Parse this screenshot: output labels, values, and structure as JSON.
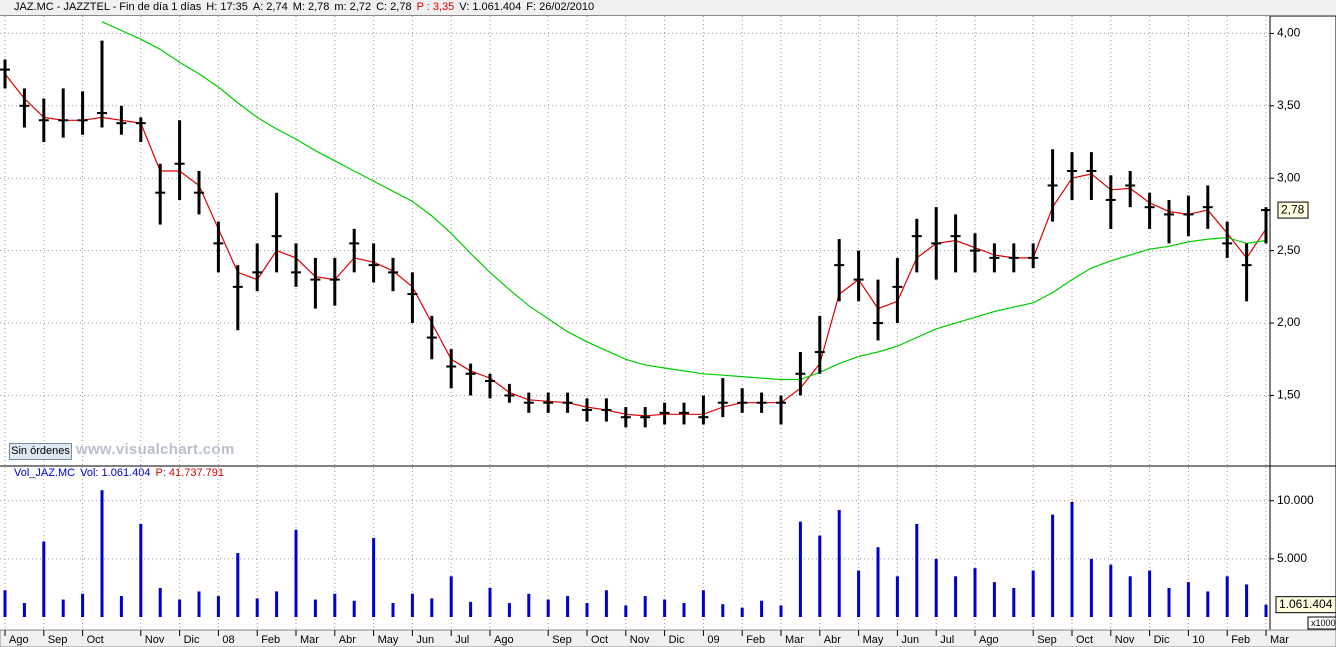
{
  "chart_data": [
    {
      "type": "hlc",
      "info": [
        {
          "text": "JAZ.MC - JAZZTEL - Fin de día 1 días",
          "color": "#000000"
        },
        {
          "text": "H: 17:35",
          "color": "#000000"
        },
        {
          "text": "A: 2,74",
          "color": "#000000"
        },
        {
          "text": "M: 2,78",
          "color": "#000000"
        },
        {
          "text": "m: 2,72",
          "color": "#000000"
        },
        {
          "text": "C: 2,78",
          "color": "#000000"
        },
        {
          "text": "P : 3,35",
          "color": "#e00000"
        },
        {
          "text": "V: 1.061.404",
          "color": "#000000"
        },
        {
          "text": "F: 26/02/2010",
          "color": "#000000"
        }
      ],
      "categories": [
        "Ago",
        null,
        "Sep",
        null,
        "Oct",
        null,
        null,
        "Nov",
        null,
        "Dic",
        null,
        "08",
        null,
        "Feb",
        null,
        "Mar",
        null,
        "Abr",
        null,
        "May",
        null,
        "Jun",
        null,
        "Jul",
        null,
        "Ago",
        null,
        null,
        "Sep",
        null,
        "Oct",
        null,
        "Nov",
        null,
        "Dic",
        null,
        "09",
        null,
        "Feb",
        null,
        "Mar",
        null,
        "Abr",
        null,
        "May",
        null,
        "Jun",
        null,
        "Jul",
        null,
        "Ago",
        null,
        null,
        "Sep",
        null,
        "Oct",
        null,
        "Nov",
        null,
        "Dic",
        null,
        "10",
        null,
        "Feb",
        null,
        "Mar"
      ],
      "high": [
        3.82,
        3.62,
        3.55,
        3.62,
        3.6,
        3.95,
        3.5,
        3.42,
        3.1,
        3.4,
        3.05,
        2.7,
        2.4,
        2.55,
        2.9,
        2.55,
        2.45,
        2.45,
        2.65,
        2.55,
        2.45,
        2.35,
        2.05,
        1.82,
        1.72,
        1.65,
        1.58,
        1.52,
        1.52,
        1.52,
        1.48,
        1.48,
        1.42,
        1.42,
        1.45,
        1.45,
        1.5,
        1.62,
        1.55,
        1.52,
        1.5,
        1.8,
        2.05,
        2.58,
        2.5,
        2.3,
        2.45,
        2.72,
        2.8,
        2.75,
        2.62,
        2.55,
        2.55,
        2.55,
        3.2,
        3.18,
        3.18,
        3.02,
        3.05,
        2.9,
        2.85,
        2.88,
        2.95,
        2.7,
        2.55,
        2.8
      ],
      "low": [
        3.62,
        3.35,
        3.25,
        3.28,
        3.3,
        3.35,
        3.3,
        3.25,
        2.68,
        2.85,
        2.75,
        2.35,
        1.95,
        2.22,
        2.35,
        2.25,
        2.1,
        2.12,
        2.35,
        2.28,
        2.22,
        2.0,
        1.75,
        1.55,
        1.5,
        1.48,
        1.45,
        1.38,
        1.38,
        1.38,
        1.32,
        1.32,
        1.28,
        1.28,
        1.3,
        1.3,
        1.3,
        1.35,
        1.38,
        1.38,
        1.3,
        1.5,
        1.65,
        2.15,
        2.15,
        1.88,
        2.0,
        2.35,
        2.3,
        2.35,
        2.35,
        2.35,
        2.35,
        2.38,
        2.7,
        2.85,
        2.85,
        2.65,
        2.8,
        2.65,
        2.55,
        2.6,
        2.65,
        2.45,
        2.15,
        2.55
      ],
      "close": [
        3.75,
        3.5,
        3.4,
        3.4,
        3.4,
        3.45,
        3.38,
        3.38,
        2.9,
        3.1,
        2.9,
        2.55,
        2.25,
        2.35,
        2.6,
        2.35,
        2.3,
        2.3,
        2.55,
        2.4,
        2.35,
        2.2,
        1.9,
        1.7,
        1.65,
        1.6,
        1.5,
        1.45,
        1.45,
        1.45,
        1.4,
        1.4,
        1.35,
        1.35,
        1.38,
        1.38,
        1.35,
        1.45,
        1.45,
        1.45,
        1.45,
        1.65,
        1.8,
        2.4,
        2.3,
        2.0,
        2.25,
        2.6,
        2.55,
        2.6,
        2.5,
        2.45,
        2.45,
        2.45,
        2.95,
        3.05,
        3.05,
        2.85,
        2.95,
        2.8,
        2.75,
        2.75,
        2.8,
        2.55,
        2.4,
        2.78
      ],
      "color": "#000000",
      "lines": [
        {
          "color": "#e00000",
          "values": [
            3.72,
            3.55,
            3.42,
            3.4,
            3.4,
            3.42,
            3.4,
            3.38,
            3.05,
            3.05,
            2.95,
            2.65,
            2.35,
            2.3,
            2.5,
            2.45,
            2.32,
            2.3,
            2.45,
            2.42,
            2.36,
            2.25,
            2.0,
            1.75,
            1.67,
            1.62,
            1.52,
            1.47,
            1.46,
            1.45,
            1.42,
            1.4,
            1.37,
            1.36,
            1.37,
            1.37,
            1.37,
            1.42,
            1.45,
            1.45,
            1.45,
            1.55,
            1.72,
            2.2,
            2.3,
            2.1,
            2.15,
            2.45,
            2.55,
            2.57,
            2.52,
            2.47,
            2.45,
            2.45,
            2.8,
            3.0,
            3.03,
            2.92,
            2.93,
            2.83,
            2.77,
            2.75,
            2.78,
            2.62,
            2.45,
            2.65
          ]
        },
        {
          "color": "#00cc00",
          "values": [
            null,
            null,
            null,
            null,
            null,
            4.08,
            4.02,
            3.96,
            3.89,
            3.8,
            3.72,
            3.63,
            3.52,
            3.42,
            3.34,
            3.27,
            3.19,
            3.12,
            3.05,
            2.98,
            2.91,
            2.84,
            2.74,
            2.62,
            2.48,
            2.35,
            2.23,
            2.12,
            2.03,
            1.94,
            1.87,
            1.81,
            1.75,
            1.71,
            1.69,
            1.67,
            1.65,
            1.64,
            1.63,
            1.62,
            1.61,
            1.61,
            1.66,
            1.72,
            1.77,
            1.8,
            1.84,
            1.9,
            1.96,
            2.0,
            2.04,
            2.08,
            2.11,
            2.14,
            2.21,
            2.3,
            2.38,
            2.43,
            2.47,
            2.51,
            2.53,
            2.56,
            2.58,
            2.59,
            2.55,
            2.57
          ]
        }
      ],
      "ylim": [
        1.02,
        4.12
      ],
      "yticks": [
        {
          "value": 1.5,
          "label": "1,50"
        },
        {
          "value": 2,
          "label": "2,00"
        },
        {
          "value": 2.5,
          "label": "2,50"
        },
        {
          "value": 3,
          "label": "3,00"
        },
        {
          "value": 3.5,
          "label": "3,50"
        },
        {
          "value": 4,
          "label": "4,00"
        }
      ],
      "last_label": "2,78",
      "grid": true
    },
    {
      "type": "bar",
      "info": [
        {
          "text": "Vol_JAZ.MC",
          "color": "#0000cc"
        },
        {
          "text": "Vol: 1.061.404",
          "color": "#0000cc"
        },
        {
          "text": "P: 41.737.791",
          "color": "#e00000"
        }
      ],
      "values": [
        2300,
        1200,
        6500,
        1500,
        2000,
        10900,
        1800,
        8000,
        2500,
        1500,
        2200,
        1800,
        5500,
        1600,
        2200,
        7500,
        1500,
        2000,
        1400,
        6800,
        1200,
        2000,
        1600,
        3500,
        1300,
        2500,
        1200,
        2000,
        1500,
        1800,
        1200,
        2300,
        1000,
        1800,
        1500,
        1200,
        2300,
        1100,
        800,
        1400,
        1000,
        8200,
        7000,
        9200,
        4000,
        6000,
        3500,
        8000,
        5000,
        3500,
        4200,
        3000,
        2500,
        4000,
        8800,
        9900,
        5000,
        4500,
        3500,
        4000,
        2500,
        3000,
        2200,
        3500,
        2800,
        1061.404
      ],
      "color": "#0000cc",
      "ylim": [
        0,
        12900
      ],
      "yticks": [
        {
          "value": 5000,
          "label": "5.000"
        },
        {
          "value": 10000,
          "label": "10.000"
        }
      ],
      "last_label": "1.061.404",
      "unit_label": "x1000",
      "grid": true
    }
  ],
  "ui": {
    "button": "Sin órdenes",
    "watermark": "www.visualchart.com"
  }
}
